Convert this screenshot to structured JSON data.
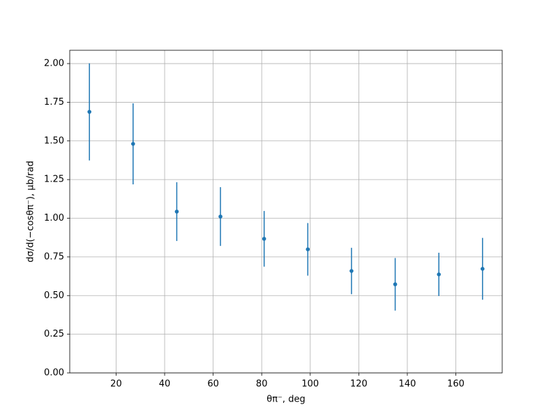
{
  "chart_data": {
    "type": "errorbar",
    "x_label": "θπ⁻, deg",
    "y_label": "dσ/d(−cosθπ⁻), μb/rad",
    "x": [
      9,
      27,
      45,
      63,
      81,
      99,
      117,
      135,
      153,
      171
    ],
    "series": [
      {
        "color": "#1f77b4",
        "values": [
          1.688,
          1.481,
          1.043,
          1.011,
          0.867,
          0.799,
          0.659,
          0.573,
          0.637,
          0.673
        ],
        "errors": [
          0.314,
          0.262,
          0.19,
          0.19,
          0.18,
          0.17,
          0.15,
          0.17,
          0.14,
          0.2
        ]
      }
    ],
    "xlim": [
      0.9,
      179.1
    ],
    "ylim": [
      0,
      2.086
    ],
    "xticks": [
      20,
      40,
      60,
      80,
      100,
      120,
      140,
      160
    ],
    "yticks": [
      {
        "value": 0,
        "label": "0.00"
      },
      {
        "value": 0.25,
        "label": "0.25"
      },
      {
        "value": 0.5,
        "label": "0.50"
      },
      {
        "value": 0.75,
        "label": "0.75"
      },
      {
        "value": 1,
        "label": "1.00"
      },
      {
        "value": 1.25,
        "label": "1.25"
      },
      {
        "value": 1.5,
        "label": "1.50"
      },
      {
        "value": 1.75,
        "label": "1.75"
      },
      {
        "value": 2,
        "label": "2.00"
      }
    ],
    "grid": true
  }
}
